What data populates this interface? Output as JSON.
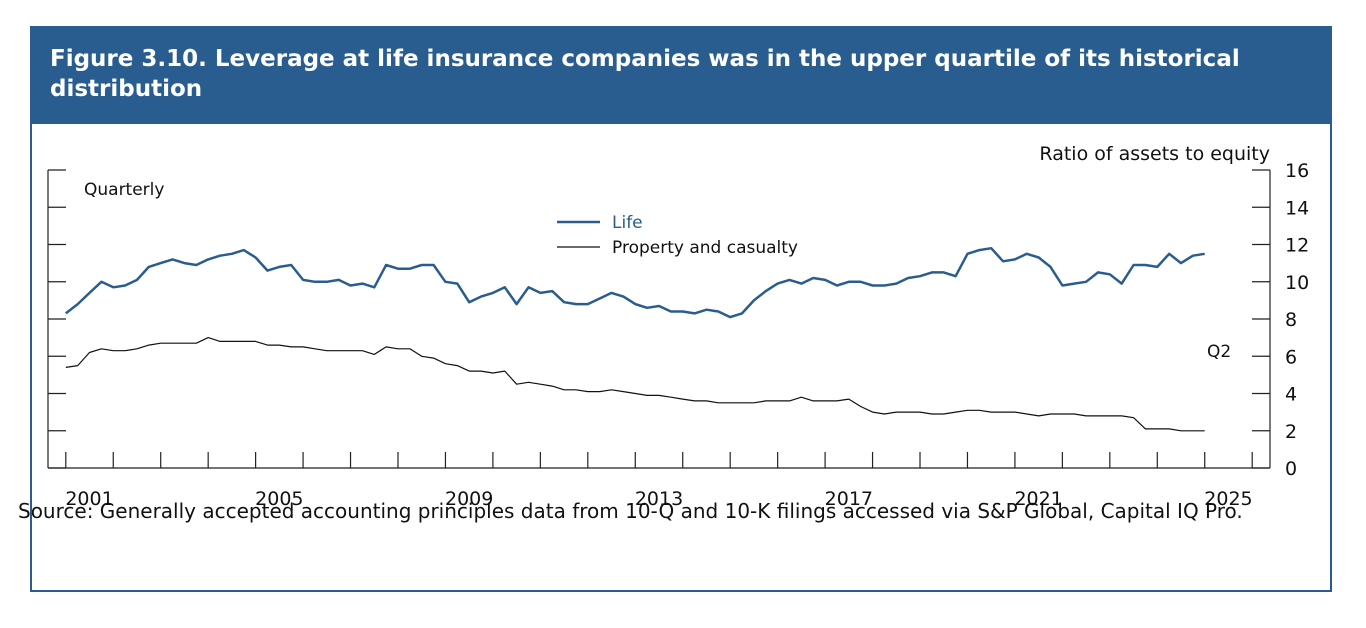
{
  "figure": {
    "title": "Figure 3.10. Leverage at life insurance companies was in the upper quartile of its historical distribution",
    "source": "Source: Generally accepted accounting principles data from 10-Q and 10-K filings accessed via S&P Global, Capital IQ Pro."
  },
  "colors": {
    "title_bg": "#2a5d8f",
    "life": "#2a5d8f",
    "property": "#111111",
    "axis": "#222222"
  },
  "chart_data": {
    "type": "line",
    "title": "Figure 3.10. Leverage at life insurance companies was in the upper quartile of its historical distribution",
    "frequency_label": "Quarterly",
    "ylabel": "Ratio of assets to equity",
    "ylim": [
      0,
      16
    ],
    "yticks": [
      0,
      2,
      4,
      6,
      8,
      10,
      12,
      14,
      16
    ],
    "xlim": [
      2000.625,
      2026.375
    ],
    "xticks": [
      "2001",
      "2005",
      "2009",
      "2013",
      "2017",
      "2021",
      "2025"
    ],
    "end_annotation": "Q2",
    "legend_position": "top-center",
    "series": [
      {
        "name": "Life",
        "color": "#2a5d8f",
        "start": 2001.0,
        "step": 0.25,
        "values": [
          8.3,
          8.8,
          9.4,
          10.0,
          9.7,
          9.8,
          10.1,
          10.8,
          11.0,
          11.2,
          11.0,
          10.9,
          11.2,
          11.4,
          11.5,
          11.7,
          11.3,
          10.6,
          10.8,
          10.9,
          10.1,
          10.0,
          10.0,
          10.1,
          9.8,
          9.9,
          9.7,
          10.9,
          10.7,
          10.7,
          10.9,
          10.9,
          10.0,
          9.9,
          8.9,
          9.2,
          9.4,
          9.7,
          8.8,
          9.7,
          9.4,
          9.5,
          8.9,
          8.8,
          8.8,
          9.1,
          9.4,
          9.2,
          8.8,
          8.6,
          8.7,
          8.4,
          8.4,
          8.3,
          8.5,
          8.4,
          8.1,
          8.3,
          9.0,
          9.5,
          9.9,
          10.1,
          9.9,
          10.2,
          10.1,
          9.8,
          10.0,
          10.0,
          9.8,
          9.8,
          9.9,
          10.2,
          10.3,
          10.5,
          10.5,
          10.3,
          11.5,
          11.7,
          11.8,
          11.1,
          11.2,
          11.5,
          11.3,
          10.8,
          9.8,
          9.9,
          10.0,
          10.5,
          10.4,
          9.9,
          10.9,
          10.9,
          10.8,
          11.5,
          11.0,
          11.4,
          11.5
        ]
      },
      {
        "name": "Property and casualty",
        "color": "#111111",
        "start": 2001.0,
        "step": 0.25,
        "values": [
          5.4,
          5.5,
          6.2,
          6.4,
          6.3,
          6.3,
          6.4,
          6.6,
          6.7,
          6.7,
          6.7,
          6.7,
          7.0,
          6.8,
          6.8,
          6.8,
          6.8,
          6.6,
          6.6,
          6.5,
          6.5,
          6.4,
          6.3,
          6.3,
          6.3,
          6.3,
          6.1,
          6.5,
          6.4,
          6.4,
          6.0,
          5.9,
          5.6,
          5.5,
          5.2,
          5.2,
          5.1,
          5.2,
          4.5,
          4.6,
          4.5,
          4.4,
          4.2,
          4.2,
          4.1,
          4.1,
          4.2,
          4.1,
          4.0,
          3.9,
          3.9,
          3.8,
          3.7,
          3.6,
          3.6,
          3.5,
          3.5,
          3.5,
          3.5,
          3.6,
          3.6,
          3.6,
          3.8,
          3.6,
          3.6,
          3.6,
          3.7,
          3.3,
          3.0,
          2.9,
          3.0,
          3.0,
          3.0,
          2.9,
          2.9,
          3.0,
          3.1,
          3.1,
          3.0,
          3.0,
          3.0,
          2.9,
          2.8,
          2.9,
          2.9,
          2.9,
          2.8,
          2.8,
          2.8,
          2.8,
          2.7,
          2.1,
          2.1,
          2.1,
          2.0,
          2.0,
          2.0
        ]
      }
    ]
  }
}
